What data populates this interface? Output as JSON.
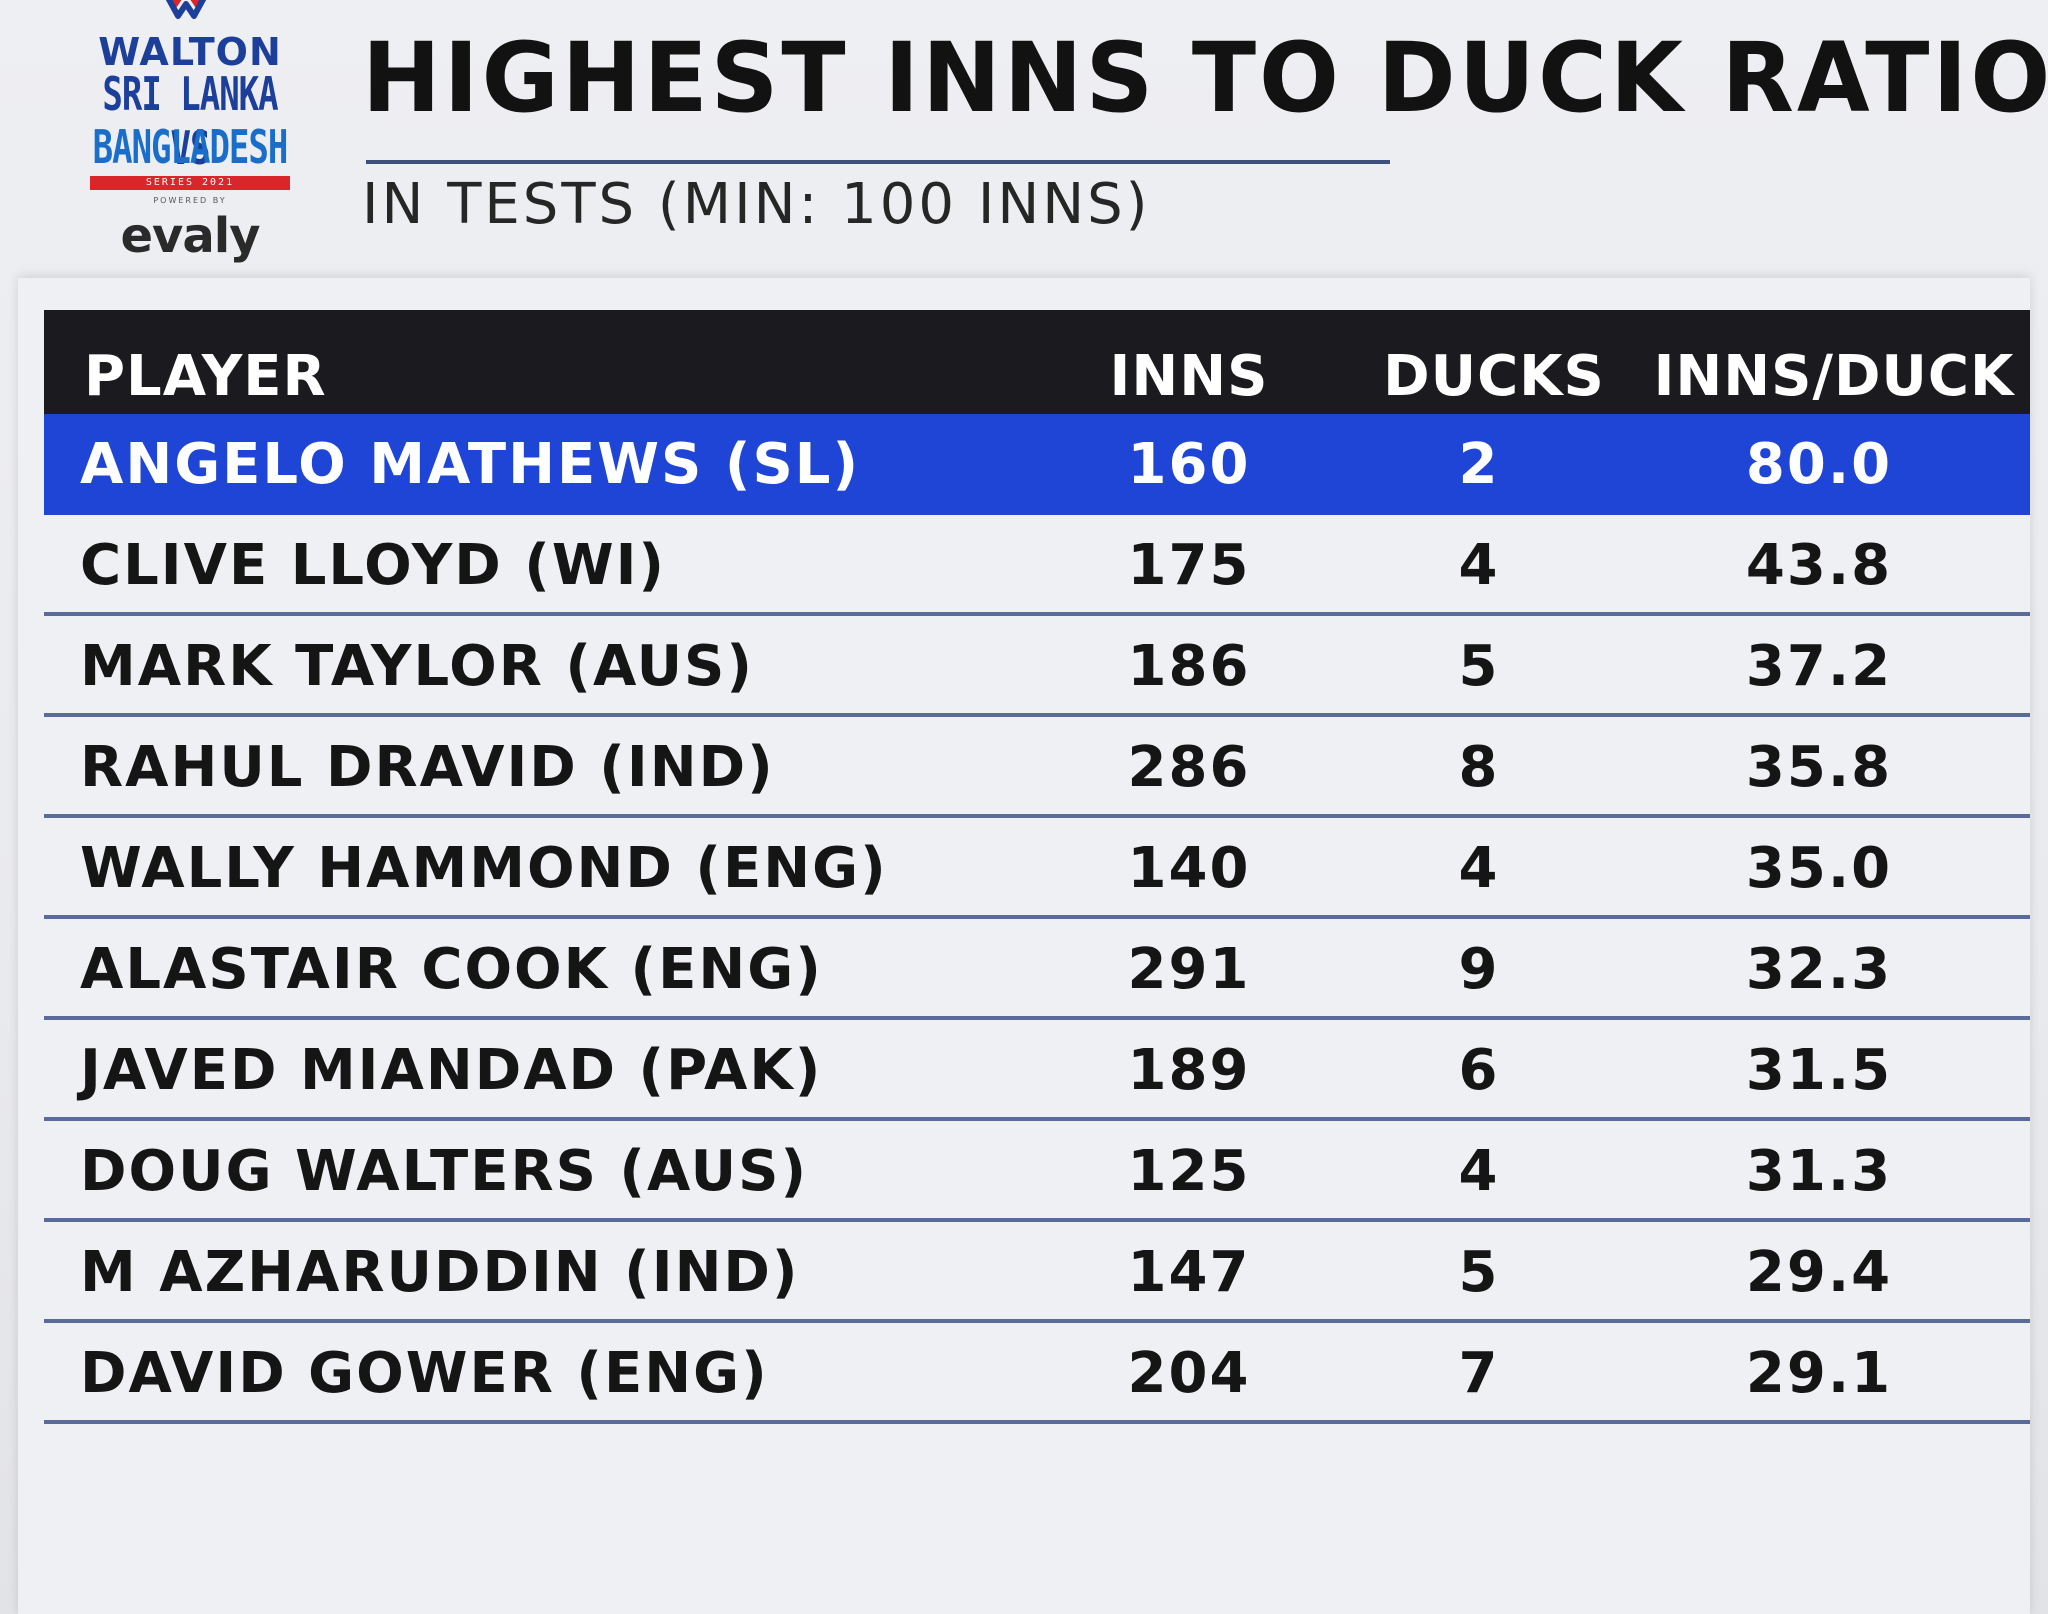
{
  "logo": {
    "brand": "WALTON",
    "series_line1": "SRI LANKA VS",
    "series_line2": "BANGLADESH",
    "series_bar": "SERIES 2021",
    "powered_by": "POWERED BY",
    "sponsor": "evaly",
    "mark_colors": [
      "#d9262b",
      "#1c3f9a"
    ]
  },
  "title": "HIGHEST INNS TO DUCK RATIO",
  "subtitle": "IN TESTS (MIN: 100 INNS)",
  "colors": {
    "header_bg": "#1b1b1f",
    "highlight_bg": "#1f45d6",
    "row_divider": "#5a6a99",
    "panel_bg": "#eef0f4"
  },
  "chart_data": {
    "type": "table",
    "title": "HIGHEST INNS TO DUCK RATIO",
    "subtitle": "IN TESTS (MIN: 100 INNS)",
    "columns": [
      "PLAYER",
      "INNS",
      "DUCKS",
      "INNS/DUCK"
    ],
    "highlighted_row": 0,
    "rows": [
      {
        "player": "ANGELO MATHEWS (SL)",
        "inns": "160",
        "ducks": "2",
        "ratio": "80.0"
      },
      {
        "player": "CLIVE LLOYD (WI)",
        "inns": "175",
        "ducks": "4",
        "ratio": "43.8"
      },
      {
        "player": "MARK TAYLOR (AUS)",
        "inns": "186",
        "ducks": "5",
        "ratio": "37.2"
      },
      {
        "player": "RAHUL DRAVID (IND)",
        "inns": "286",
        "ducks": "8",
        "ratio": "35.8"
      },
      {
        "player": "WALLY HAMMOND (ENG)",
        "inns": "140",
        "ducks": "4",
        "ratio": "35.0"
      },
      {
        "player": "ALASTAIR COOK (ENG)",
        "inns": "291",
        "ducks": "9",
        "ratio": "32.3"
      },
      {
        "player": "JAVED MIANDAD (PAK)",
        "inns": "189",
        "ducks": "6",
        "ratio": "31.5"
      },
      {
        "player": "DOUG WALTERS (AUS)",
        "inns": "125",
        "ducks": "4",
        "ratio": "31.3"
      },
      {
        "player": "M AZHARUDDIN (IND)",
        "inns": "147",
        "ducks": "5",
        "ratio": "29.4"
      },
      {
        "player": "DAVID GOWER (ENG)",
        "inns": "204",
        "ducks": "7",
        "ratio": "29.1"
      }
    ]
  }
}
